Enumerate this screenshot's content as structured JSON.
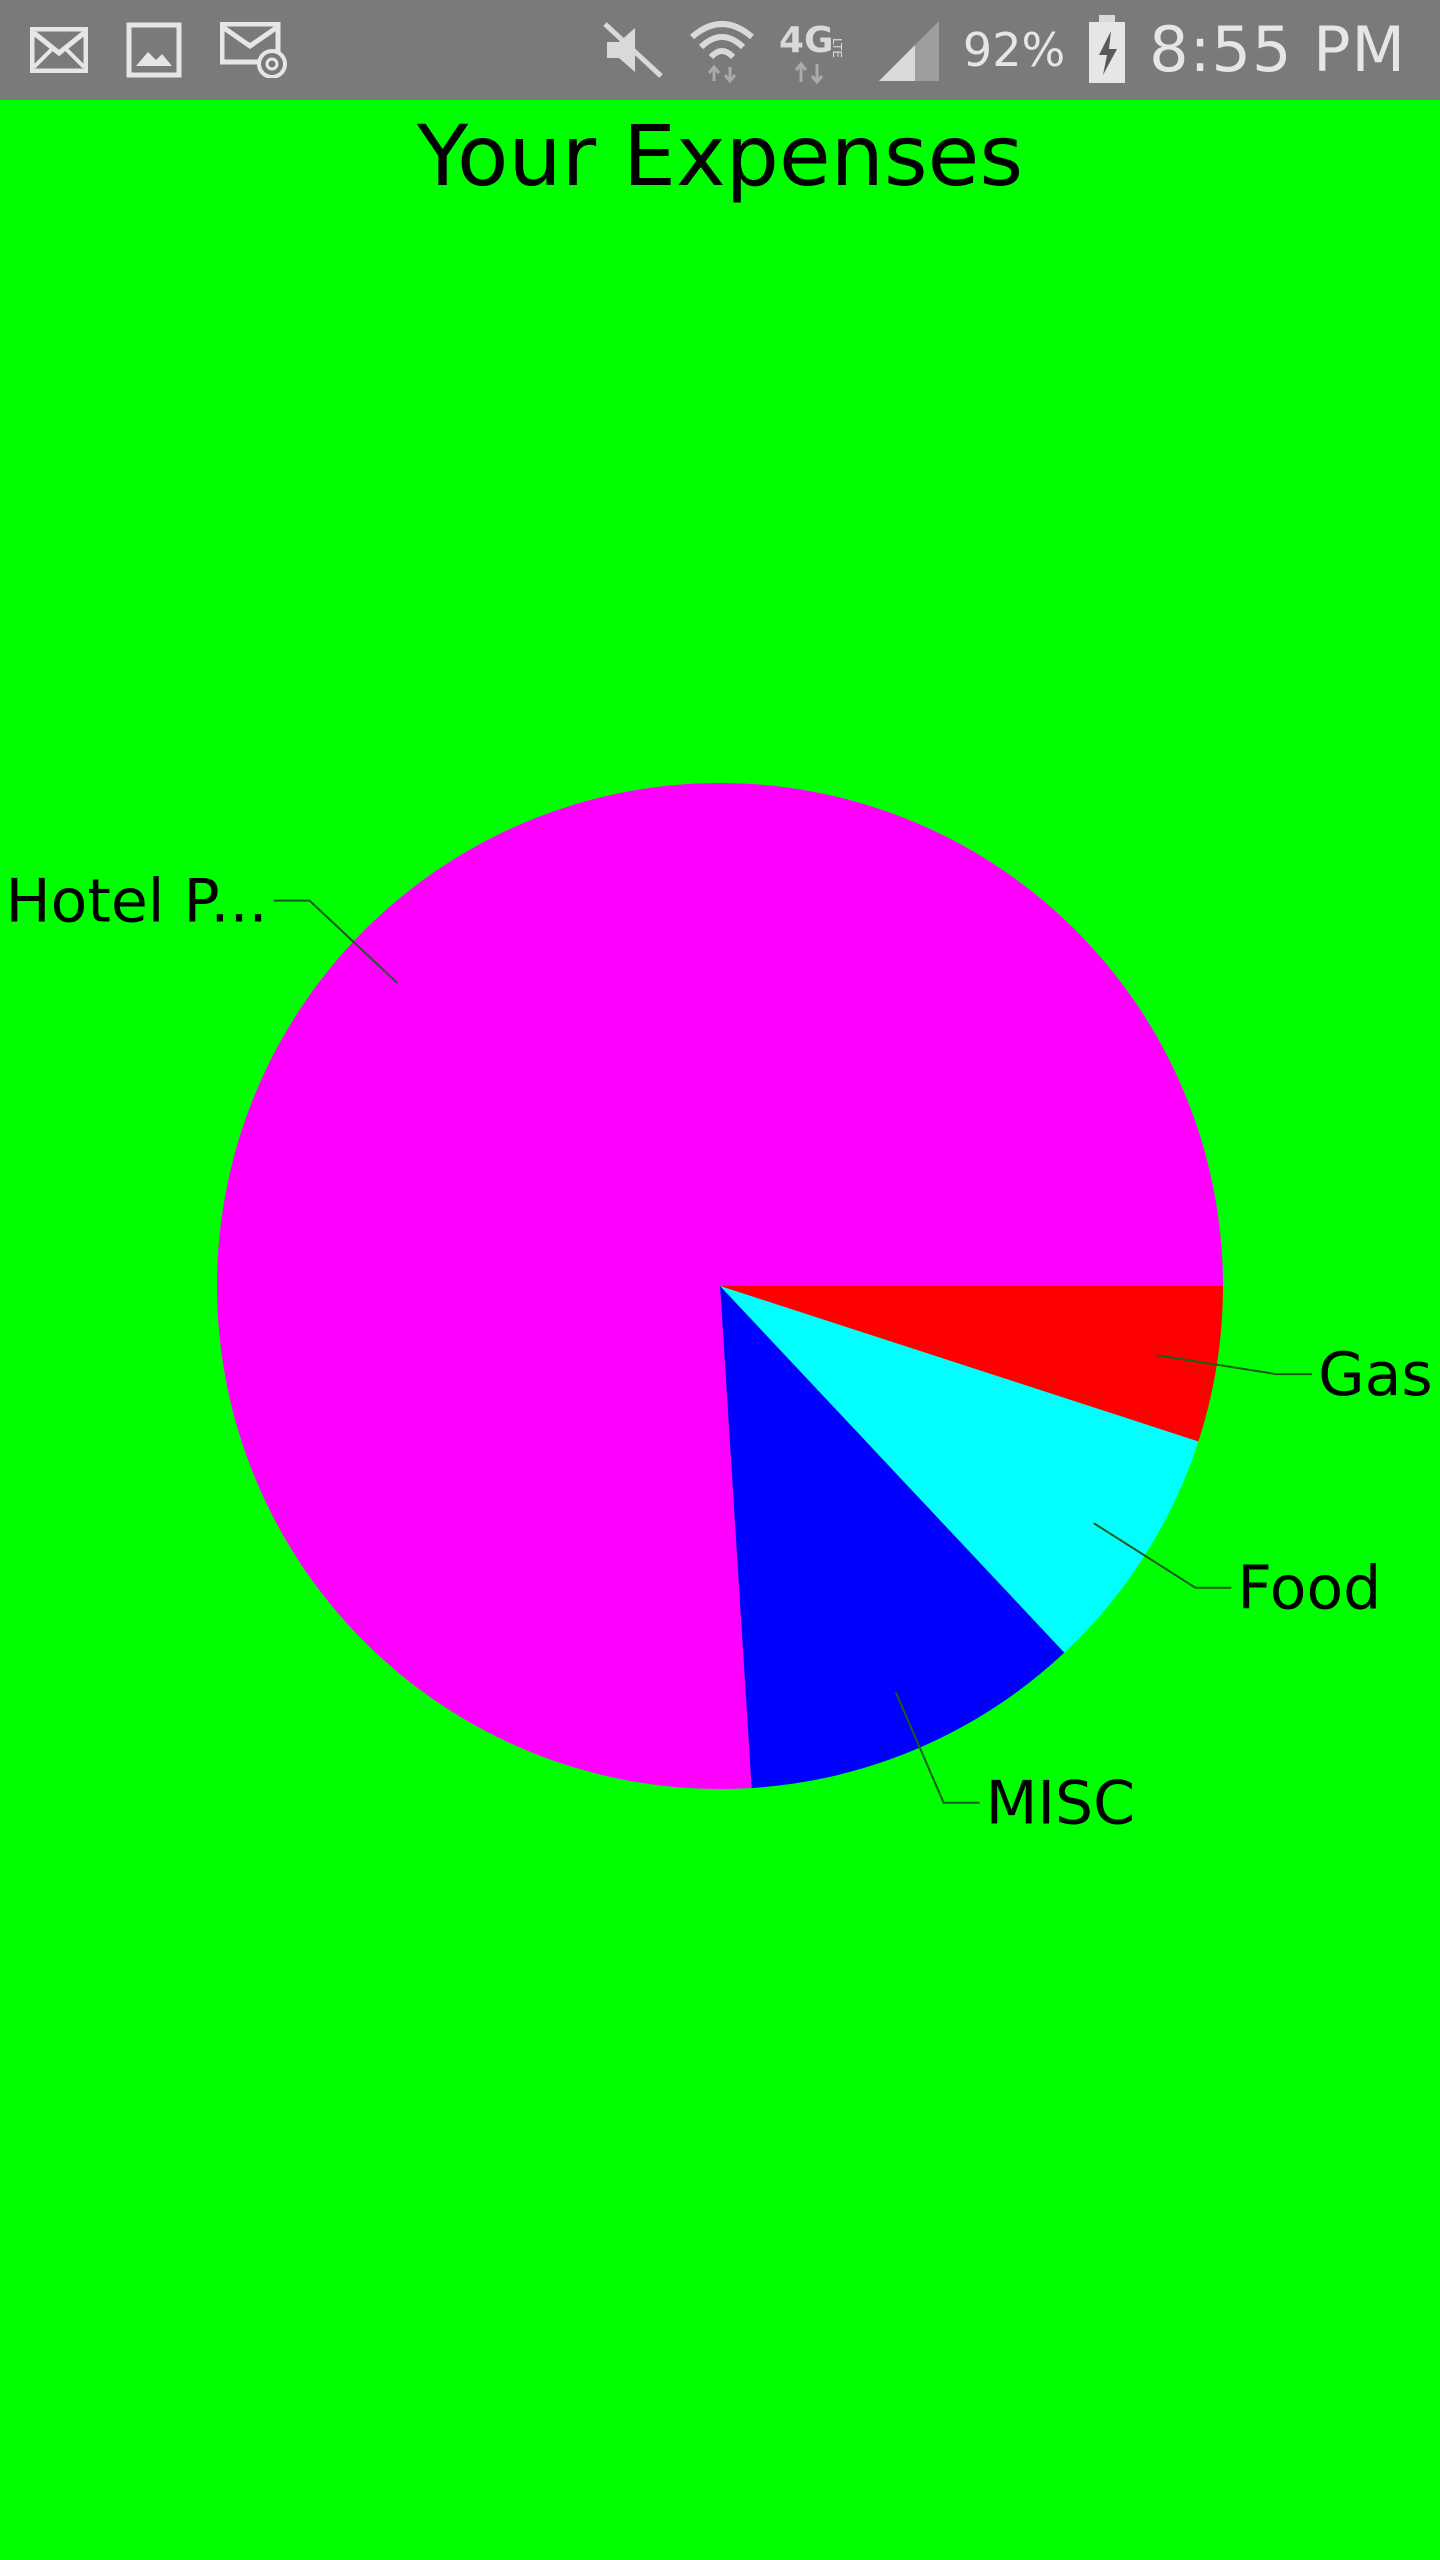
{
  "status_bar": {
    "icons_left": [
      "mail-icon",
      "gallery-icon",
      "email-at-icon"
    ],
    "icons_right": [
      "mute-icon",
      "wifi-icon",
      "4g-lte-icon",
      "signal-icon",
      "battery-charging-icon"
    ],
    "battery": "92%",
    "time": "8:55 PM"
  },
  "colors": {
    "background": "#00ff00",
    "status_bar": "#7a7a7a"
  },
  "chart_data": {
    "type": "pie",
    "title": "Your Expenses",
    "start_angle": "3 o'clock, clockwise",
    "slices": [
      {
        "label": "Gas",
        "value": 5,
        "color": "#ff0000"
      },
      {
        "label": "Food",
        "value": 8,
        "color": "#00ffff"
      },
      {
        "label": "MISC",
        "value": 11,
        "color": "#0000ff"
      },
      {
        "label": "Hotel P...",
        "value": 76,
        "color": "#ff00ff"
      }
    ]
  }
}
